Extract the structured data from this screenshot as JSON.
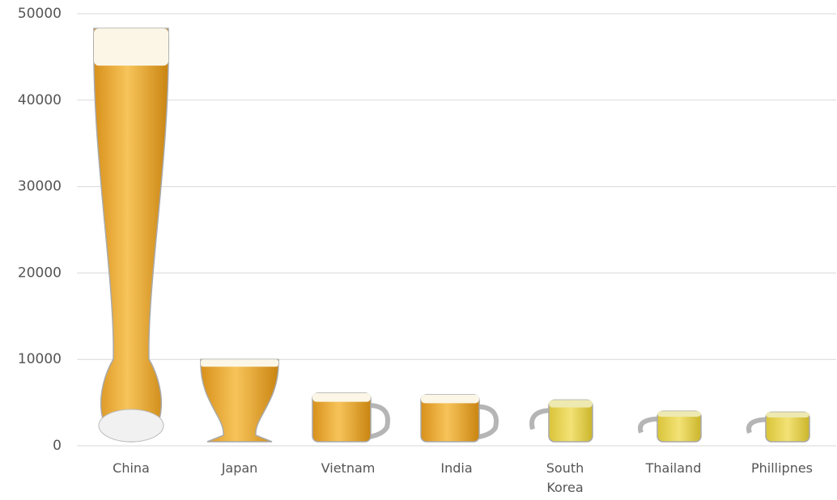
{
  "chart_data": {
    "type": "bar",
    "categories": [
      "China",
      "Japan",
      "Vietnam",
      "India",
      "South Korea",
      "Thailand",
      "Phillipnes"
    ],
    "values": [
      48300,
      10000,
      6100,
      5900,
      5300,
      4000,
      3900
    ],
    "color": "#e0a020",
    "ylim": [
      0,
      50000
    ],
    "yticks": [
      0,
      10000,
      20000,
      30000,
      40000,
      50000
    ],
    "grid": true
  }
}
